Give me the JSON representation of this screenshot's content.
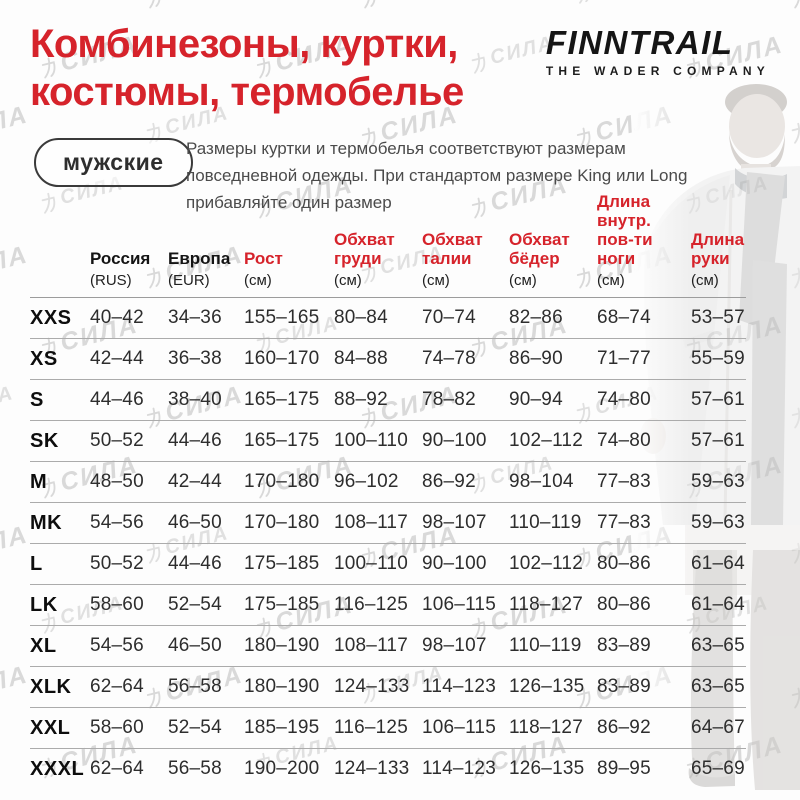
{
  "colors": {
    "accent_red": "#d6232b",
    "text_dark": "#1a1a1a",
    "watermark_gray": "#d9d9d9"
  },
  "watermark": {
    "text": "力СИЛА"
  },
  "header": {
    "title_line1": "Комбинезоны, куртки,",
    "title_line2": "костюмы, термобелье",
    "brand": "FINNTRAIL",
    "brand_tagline": "THE WADER COMPANY"
  },
  "intro": {
    "badge": "мужские",
    "description": "Размеры куртки и термобелья соответствуют размерам повседневной одежды. При стандартом размере King или Long прибавляйте один размер"
  },
  "chart_data": {
    "type": "table",
    "title": "Комбинезоны, куртки, костюмы, термобелье — мужские",
    "columns": [
      {
        "lines": [
          "Россия"
        ],
        "sub": "(RUS)",
        "red": false
      },
      {
        "lines": [
          "Европа"
        ],
        "sub": "(EUR)",
        "red": false
      },
      {
        "lines": [
          "Рост"
        ],
        "sub": "(см)",
        "red": true
      },
      {
        "lines": [
          "Обхват",
          "груди"
        ],
        "sub": "(см)",
        "red": true
      },
      {
        "lines": [
          "Обхват",
          "талии"
        ],
        "sub": "(см)",
        "red": true
      },
      {
        "lines": [
          "Обхват",
          "бёдер"
        ],
        "sub": "(см)",
        "red": true
      },
      {
        "lines": [
          "Длина",
          "внутр.",
          "пов-ти",
          "ноги"
        ],
        "sub": "(см)",
        "red": true
      },
      {
        "lines": [
          "Длина",
          "руки"
        ],
        "sub": "(см)",
        "red": true
      }
    ],
    "rows": [
      {
        "size": "XXS",
        "values": [
          "40–42",
          "34–36",
          "155–165",
          "80–84",
          "70–74",
          "82–86",
          "68–74",
          "53–57"
        ]
      },
      {
        "size": "XS",
        "values": [
          "42–44",
          "36–38",
          "160–170",
          "84–88",
          "74–78",
          "86–90",
          "71–77",
          "55–59"
        ]
      },
      {
        "size": "S",
        "values": [
          "44–46",
          "38–40",
          "165–175",
          "88–92",
          "78–82",
          "90–94",
          "74–80",
          "57–61"
        ]
      },
      {
        "size": "SK",
        "values": [
          "50–52",
          "44–46",
          "165–175",
          "100–110",
          "90–100",
          "102–112",
          "74–80",
          "57–61"
        ]
      },
      {
        "size": "M",
        "values": [
          "48–50",
          "42–44",
          "170–180",
          "96–102",
          "86–92",
          "98–104",
          "77–83",
          "59–63"
        ]
      },
      {
        "size": "MK",
        "values": [
          "54–56",
          "46–50",
          "170–180",
          "108–117",
          "98–107",
          "110–119",
          "77–83",
          "59–63"
        ]
      },
      {
        "size": "L",
        "values": [
          "50–52",
          "44–46",
          "175–185",
          "100–110",
          "90–100",
          "102–112",
          "80–86",
          "61–64"
        ]
      },
      {
        "size": "LK",
        "values": [
          "58–60",
          "52–54",
          "175–185",
          "116–125",
          "106–115",
          "118–127",
          "80–86",
          "61–64"
        ]
      },
      {
        "size": "XL",
        "values": [
          "54–56",
          "46–50",
          "180–190",
          "108–117",
          "98–107",
          "110–119",
          "83–89",
          "63–65"
        ]
      },
      {
        "size": "XLK",
        "values": [
          "62–64",
          "56–58",
          "180–190",
          "124–133",
          "114–123",
          "126–135",
          "83–89",
          "63–65"
        ]
      },
      {
        "size": "XXL",
        "values": [
          "58–60",
          "52–54",
          "185–195",
          "116–125",
          "106–115",
          "118–127",
          "86–92",
          "64–67"
        ]
      },
      {
        "size": "XXXL",
        "values": [
          "62–64",
          "56–58",
          "190–200",
          "124–133",
          "114–123",
          "126–135",
          "89–95",
          "65–69"
        ]
      }
    ]
  }
}
